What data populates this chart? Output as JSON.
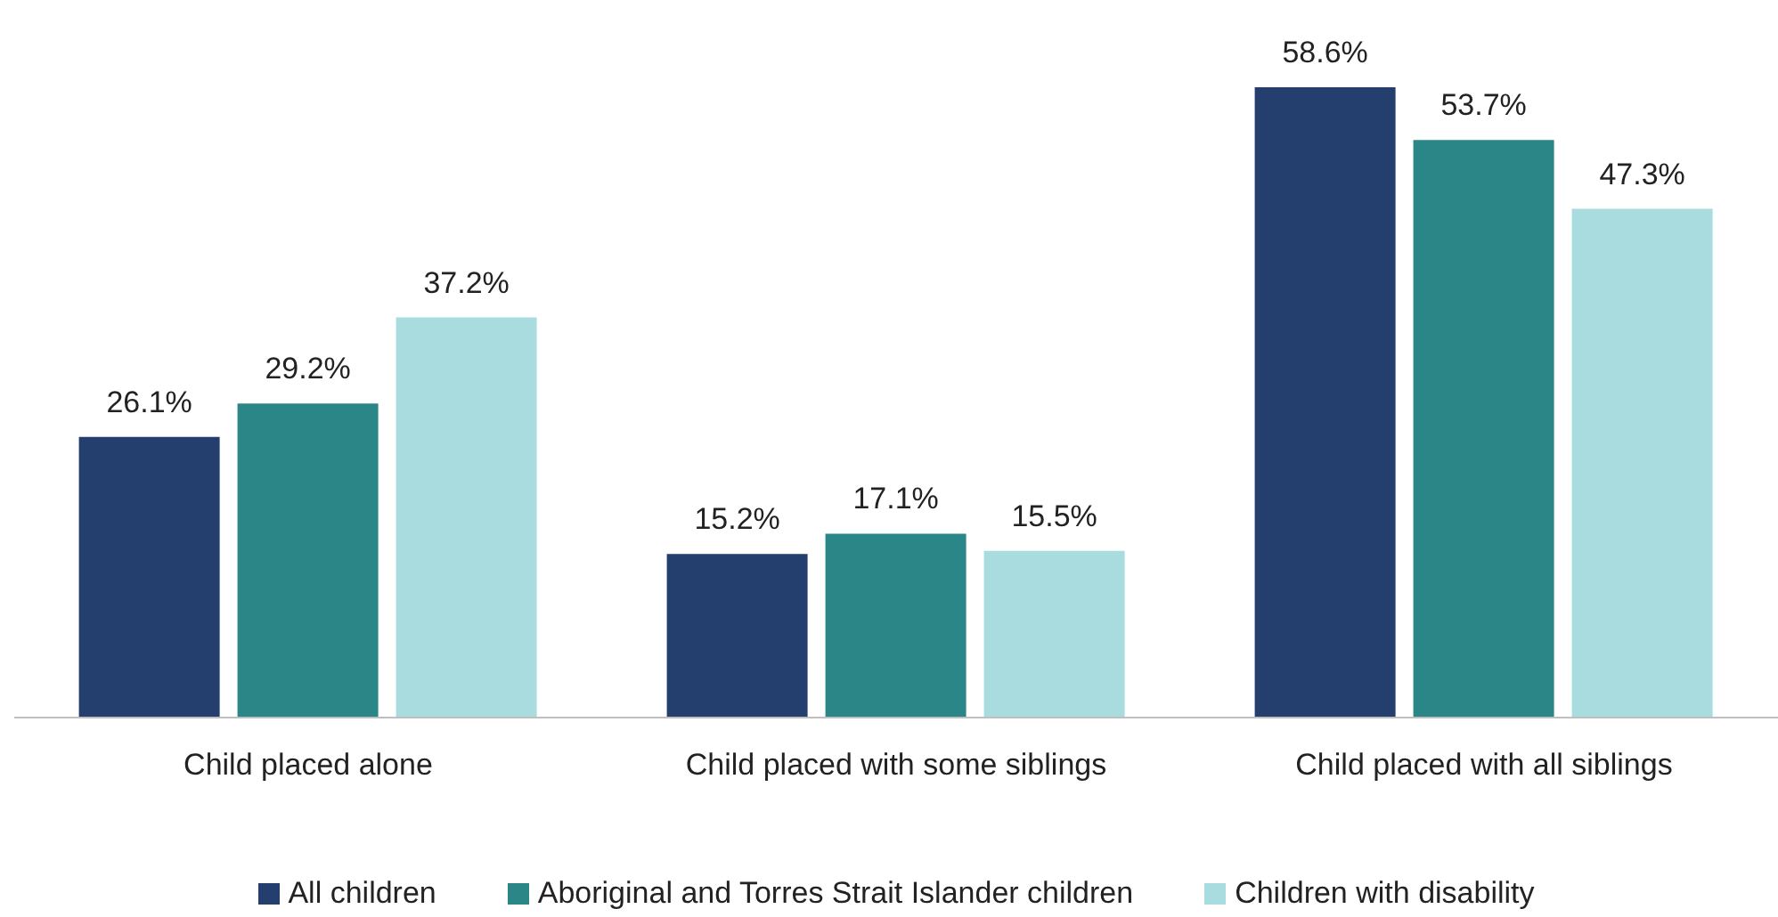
{
  "chart_data": {
    "type": "bar",
    "categories": [
      "Child placed alone",
      "Child placed with some siblings",
      "Child placed with all siblings"
    ],
    "series": [
      {
        "name": "All children",
        "color": "#243e6e",
        "values": [
          26.1,
          15.2,
          58.6
        ],
        "value_labels": [
          "26.1%",
          "15.2%",
          "58.6%"
        ]
      },
      {
        "name": "Aboriginal and Torres Strait Islander children",
        "color": "#2b8787",
        "values": [
          29.2,
          17.1,
          53.7
        ],
        "value_labels": [
          "29.2%",
          "17.1%",
          "53.7%"
        ]
      },
      {
        "name": "Children with disability",
        "color": "#a8dcdf",
        "values": [
          37.2,
          15.5,
          47.3
        ],
        "value_labels": [
          "37.2%",
          "15.5%",
          "47.3%"
        ]
      }
    ],
    "legend": "bottom",
    "grid": false
  }
}
